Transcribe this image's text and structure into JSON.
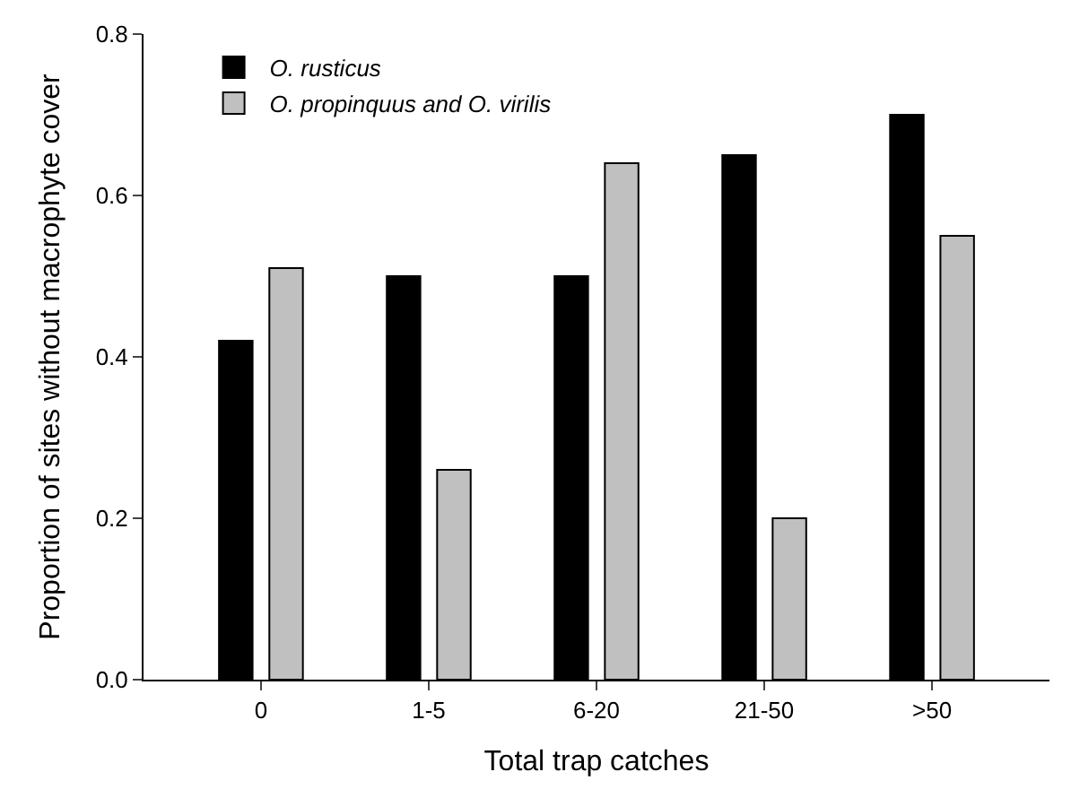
{
  "chart_data": {
    "type": "bar",
    "xlabel": "Total trap catches",
    "ylabel": "Proportion of sites without macrophyte cover",
    "categories": [
      "0",
      "1-5",
      "6-20",
      "21-50",
      ">50"
    ],
    "series": [
      {
        "name": "O. rusticus",
        "color": "#000000",
        "values": [
          0.42,
          0.5,
          0.5,
          0.65,
          0.7
        ]
      },
      {
        "name": "O. propinquus and O. virilis",
        "color": "#c0c0c0",
        "values": [
          0.51,
          0.26,
          0.64,
          0.2,
          0.55
        ]
      }
    ],
    "ylim": [
      0,
      0.8
    ],
    "yticks": [
      {
        "value": 0,
        "label": "0.0"
      },
      {
        "value": 0.2,
        "label": "0.2"
      },
      {
        "value": 0.4,
        "label": "0.4"
      },
      {
        "value": 0.6,
        "label": "0.6"
      },
      {
        "value": 0.8,
        "label": "0.8"
      }
    ],
    "legend": "top left"
  }
}
